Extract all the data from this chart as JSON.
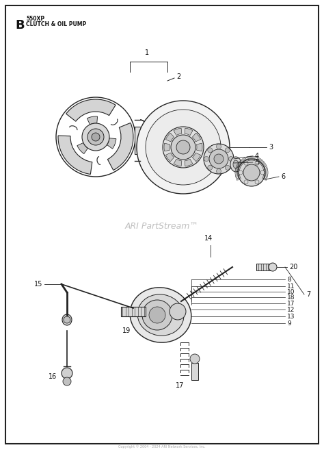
{
  "background_color": "#ffffff",
  "border_color": "#111111",
  "line_color": "#222222",
  "text_color": "#111111",
  "gray_fill": "#cccccc",
  "light_fill": "#e8e8e8",
  "watermark": "ARI PartStream™",
  "watermark_color": "#c0c0c0",
  "footer_text": "Copyright © 2004 - 2024 ARI Network Services, Inc.",
  "section_letter": "B",
  "section_model": "550XP",
  "section_title": "CLUTCH & OIL PUMP"
}
